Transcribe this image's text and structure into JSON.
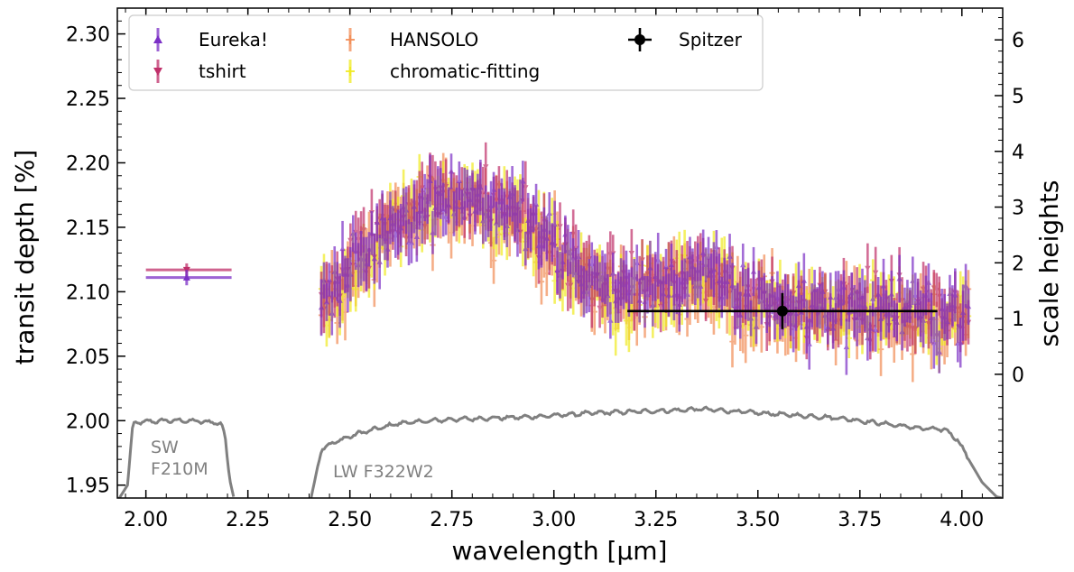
{
  "chart_data": {
    "type": "scatter",
    "xlabel": "wavelength [μm]",
    "ylabel": "transit depth [%]",
    "ylabel_right": "scale heights",
    "xlim": [
      1.93,
      4.1
    ],
    "ylim": [
      1.94,
      2.32
    ],
    "right_ylim_scale_heights": [
      -2.22,
      6.57
    ],
    "xticks": [
      "2.00",
      "2.25",
      "2.50",
      "2.75",
      "3.00",
      "3.25",
      "3.50",
      "3.75",
      "4.00"
    ],
    "yticks": [
      "1.95",
      "2.00",
      "2.05",
      "2.10",
      "2.15",
      "2.20",
      "2.25",
      "2.30"
    ],
    "right_yticks": [
      "0",
      "1",
      "2",
      "3",
      "4",
      "5",
      "6"
    ],
    "grid": false,
    "legend_position": "top-left",
    "legend_entries": [
      "Eureka!",
      "tshirt",
      "HANSOLO",
      "chromatic-fitting",
      "Spitzer"
    ],
    "series": [
      {
        "name": "Eureka!",
        "color": "#7b2fc6",
        "marker": "triangle-up",
        "sw_point": {
          "x": 2.1,
          "y": 2.111,
          "xerr": [
            2.0,
            2.21
          ],
          "yerr": 0.006
        }
      },
      {
        "name": "tshirt",
        "color": "#c0306a",
        "marker": "triangle-down",
        "sw_point": {
          "x": 2.1,
          "y": 2.117,
          "xerr": [
            2.0,
            2.21
          ],
          "yerr": 0.005
        }
      },
      {
        "name": "HANSOLO",
        "color": "#f28c55",
        "marker": "plus"
      },
      {
        "name": "chromatic-fitting",
        "color": "#f0ea20",
        "marker": "plus"
      },
      {
        "name": "Spitzer",
        "color": "#000000",
        "marker": "circle",
        "points": [
          {
            "x": 3.56,
            "y": 2.085,
            "xerr": [
              3.18,
              3.94
            ],
            "yerr": 0.014
          }
        ]
      }
    ],
    "lw_spectrum_model": {
      "x_range": [
        2.43,
        4.02
      ],
      "anchors": [
        [
          2.43,
          2.088
        ],
        [
          2.5,
          2.118
        ],
        [
          2.6,
          2.152
        ],
        [
          2.7,
          2.172
        ],
        [
          2.78,
          2.175
        ],
        [
          2.85,
          2.168
        ],
        [
          2.92,
          2.16
        ],
        [
          3.0,
          2.132
        ],
        [
          3.08,
          2.112
        ],
        [
          3.15,
          2.1
        ],
        [
          3.25,
          2.105
        ],
        [
          3.35,
          2.112
        ],
        [
          3.45,
          2.1
        ],
        [
          3.55,
          2.09
        ],
        [
          3.65,
          2.088
        ],
        [
          3.75,
          2.087
        ],
        [
          3.85,
          2.085
        ],
        [
          3.95,
          2.083
        ],
        [
          4.02,
          2.085
        ]
      ],
      "offsets": {
        "Eureka!": 0.0,
        "tshirt": 0.002,
        "HANSOLO": -0.006,
        "chromatic-fitting": -0.004
      },
      "bin_width": 0.0065
    },
    "throughput_curves": [
      {
        "label": "SW\nF210M",
        "anchors": [
          [
            1.935,
            1.94
          ],
          [
            1.955,
            1.95
          ],
          [
            1.962,
            1.975
          ],
          [
            1.968,
            1.997
          ],
          [
            1.985,
            1.999
          ],
          [
            2.05,
            2.0
          ],
          [
            2.1,
            2.0
          ],
          [
            2.15,
            1.999
          ],
          [
            2.185,
            1.998
          ],
          [
            2.195,
            1.985
          ],
          [
            2.205,
            1.955
          ],
          [
            2.215,
            1.941
          ]
        ]
      },
      {
        "label": "LW F322W2",
        "anchors": [
          [
            2.405,
            1.94
          ],
          [
            2.418,
            1.96
          ],
          [
            2.43,
            1.978
          ],
          [
            2.46,
            1.983
          ],
          [
            2.52,
            1.99
          ],
          [
            2.62,
            1.998
          ],
          [
            2.75,
            2.001
          ],
          [
            2.95,
            2.003
          ],
          [
            3.1,
            2.006
          ],
          [
            3.3,
            2.008
          ],
          [
            3.36,
            2.009
          ],
          [
            3.5,
            2.006
          ],
          [
            3.7,
            2.002
          ],
          [
            3.9,
            1.994
          ],
          [
            3.96,
            1.993
          ],
          [
            3.99,
            1.985
          ],
          [
            4.02,
            1.968
          ],
          [
            4.05,
            1.952
          ],
          [
            4.085,
            1.941
          ],
          [
            4.1,
            1.94
          ]
        ]
      }
    ],
    "colors": {
      "throughput": "#808080",
      "axis": "#000000"
    }
  }
}
